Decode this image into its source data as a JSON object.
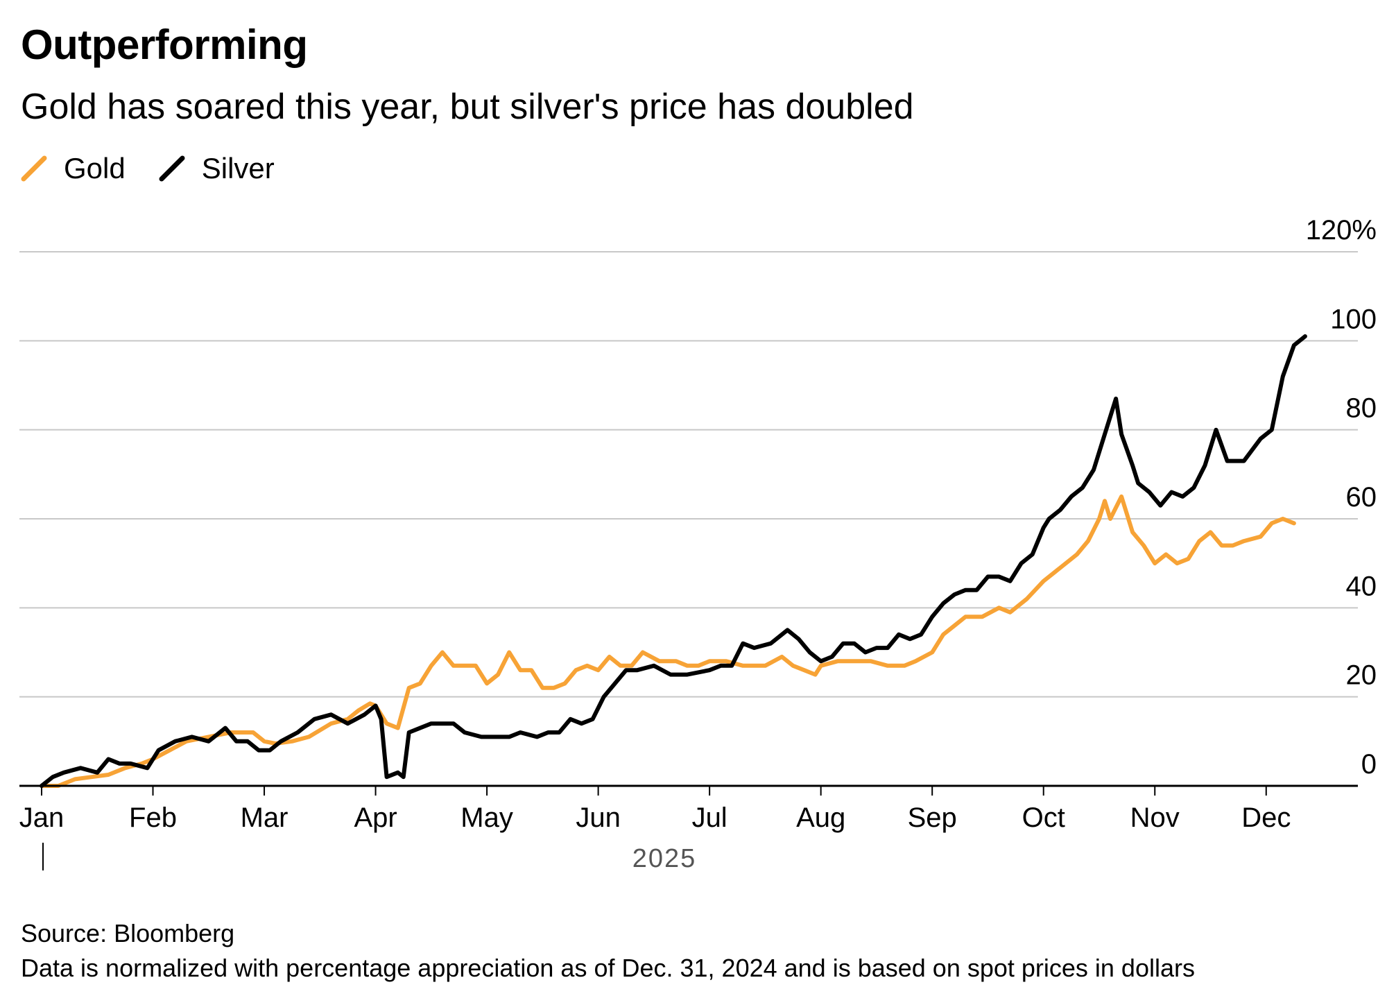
{
  "header": {
    "title": "Outperforming",
    "subtitle": "Gold has soared this year, but silver's price has doubled"
  },
  "footer": {
    "source": "Source: Bloomberg",
    "note": "Data is normalized with percentage appreciation as of Dec. 31, 2024 and is based on spot prices in dollars"
  },
  "chart_data": {
    "type": "line",
    "title": "Outperforming",
    "subtitle": "Gold has soared this year, but silver's price has doubled",
    "xlabel": "2025",
    "ylabel": "",
    "ylim": [
      0,
      120
    ],
    "xlim": [
      0,
      11.45
    ],
    "y_ticks": [
      {
        "value": 0,
        "label": "0"
      },
      {
        "value": 20,
        "label": "20"
      },
      {
        "value": 40,
        "label": "40"
      },
      {
        "value": 60,
        "label": "60"
      },
      {
        "value": 80,
        "label": "80"
      },
      {
        "value": 100,
        "label": "100"
      },
      {
        "value": 120,
        "label": "120%"
      }
    ],
    "x_ticks": [
      {
        "value": 0,
        "label": "Jan"
      },
      {
        "value": 1,
        "label": "Feb"
      },
      {
        "value": 2,
        "label": "Mar"
      },
      {
        "value": 3,
        "label": "Apr"
      },
      {
        "value": 4,
        "label": "May"
      },
      {
        "value": 5,
        "label": "Jun"
      },
      {
        "value": 6,
        "label": "Jul"
      },
      {
        "value": 7,
        "label": "Aug"
      },
      {
        "value": 8,
        "label": "Sep"
      },
      {
        "value": 9,
        "label": "Oct"
      },
      {
        "value": 10,
        "label": "Nov"
      },
      {
        "value": 11,
        "label": "Dec"
      }
    ],
    "x_unit": "months since Jan 1, 2025",
    "grid": true,
    "legend": "top-left",
    "series": [
      {
        "name": "Gold",
        "color": "#F7A336",
        "points": [
          [
            0,
            0
          ],
          [
            0.15,
            0
          ],
          [
            0.3,
            1.5
          ],
          [
            0.45,
            2
          ],
          [
            0.6,
            2.5
          ],
          [
            0.75,
            4
          ],
          [
            0.9,
            5
          ],
          [
            1.0,
            6
          ],
          [
            1.15,
            8
          ],
          [
            1.3,
            10
          ],
          [
            1.5,
            11
          ],
          [
            1.7,
            12
          ],
          [
            1.9,
            12
          ],
          [
            2.0,
            10
          ],
          [
            2.1,
            9.5
          ],
          [
            2.25,
            10
          ],
          [
            2.4,
            11
          ],
          [
            2.6,
            14
          ],
          [
            2.75,
            15
          ],
          [
            2.85,
            17
          ],
          [
            2.95,
            18.5
          ],
          [
            3.0,
            18
          ],
          [
            3.1,
            14
          ],
          [
            3.2,
            13
          ],
          [
            3.3,
            22
          ],
          [
            3.4,
            23
          ],
          [
            3.5,
            27
          ],
          [
            3.6,
            30
          ],
          [
            3.7,
            27
          ],
          [
            3.8,
            27
          ],
          [
            3.9,
            27
          ],
          [
            4.0,
            23
          ],
          [
            4.1,
            25
          ],
          [
            4.2,
            30
          ],
          [
            4.3,
            26
          ],
          [
            4.4,
            26
          ],
          [
            4.5,
            22
          ],
          [
            4.6,
            22
          ],
          [
            4.7,
            23
          ],
          [
            4.8,
            26
          ],
          [
            4.9,
            27
          ],
          [
            5.0,
            26
          ],
          [
            5.1,
            29
          ],
          [
            5.2,
            27
          ],
          [
            5.3,
            27
          ],
          [
            5.4,
            30
          ],
          [
            5.55,
            28
          ],
          [
            5.7,
            28
          ],
          [
            5.8,
            27
          ],
          [
            5.9,
            27
          ],
          [
            6.0,
            28
          ],
          [
            6.15,
            28
          ],
          [
            6.3,
            27
          ],
          [
            6.5,
            27
          ],
          [
            6.65,
            29
          ],
          [
            6.75,
            27
          ],
          [
            6.85,
            26
          ],
          [
            6.95,
            25
          ],
          [
            7.0,
            27
          ],
          [
            7.15,
            28
          ],
          [
            7.3,
            28
          ],
          [
            7.45,
            28
          ],
          [
            7.6,
            27
          ],
          [
            7.75,
            27
          ],
          [
            7.85,
            28
          ],
          [
            8.0,
            30
          ],
          [
            8.1,
            34
          ],
          [
            8.2,
            36
          ],
          [
            8.3,
            38
          ],
          [
            8.45,
            38
          ],
          [
            8.6,
            40
          ],
          [
            8.7,
            39
          ],
          [
            8.85,
            42
          ],
          [
            9.0,
            46
          ],
          [
            9.1,
            48
          ],
          [
            9.2,
            50
          ],
          [
            9.3,
            52
          ],
          [
            9.4,
            55
          ],
          [
            9.5,
            60
          ],
          [
            9.55,
            64
          ],
          [
            9.6,
            60
          ],
          [
            9.7,
            65
          ],
          [
            9.8,
            57
          ],
          [
            9.9,
            54
          ],
          [
            10.0,
            50
          ],
          [
            10.1,
            52
          ],
          [
            10.2,
            50
          ],
          [
            10.3,
            51
          ],
          [
            10.4,
            55
          ],
          [
            10.5,
            57
          ],
          [
            10.6,
            54
          ],
          [
            10.7,
            54
          ],
          [
            10.8,
            55
          ],
          [
            10.95,
            56
          ],
          [
            11.05,
            59
          ],
          [
            11.15,
            60
          ],
          [
            11.25,
            59
          ]
        ]
      },
      {
        "name": "Silver",
        "color": "#000000",
        "points": [
          [
            0,
            0
          ],
          [
            0.1,
            2
          ],
          [
            0.2,
            3
          ],
          [
            0.35,
            4
          ],
          [
            0.5,
            3
          ],
          [
            0.6,
            6
          ],
          [
            0.7,
            5
          ],
          [
            0.8,
            5
          ],
          [
            0.95,
            4
          ],
          [
            1.05,
            8
          ],
          [
            1.2,
            10
          ],
          [
            1.35,
            11
          ],
          [
            1.5,
            10
          ],
          [
            1.65,
            13
          ],
          [
            1.75,
            10
          ],
          [
            1.85,
            10
          ],
          [
            1.95,
            8
          ],
          [
            2.05,
            8
          ],
          [
            2.15,
            10
          ],
          [
            2.3,
            12
          ],
          [
            2.45,
            15
          ],
          [
            2.6,
            16
          ],
          [
            2.75,
            14
          ],
          [
            2.9,
            16
          ],
          [
            3.0,
            18
          ],
          [
            3.05,
            15
          ],
          [
            3.1,
            2
          ],
          [
            3.2,
            3
          ],
          [
            3.25,
            2
          ],
          [
            3.3,
            12
          ],
          [
            3.4,
            13
          ],
          [
            3.5,
            14
          ],
          [
            3.6,
            14
          ],
          [
            3.7,
            14
          ],
          [
            3.8,
            12
          ],
          [
            3.95,
            11
          ],
          [
            4.1,
            11
          ],
          [
            4.2,
            11
          ],
          [
            4.3,
            12
          ],
          [
            4.45,
            11
          ],
          [
            4.55,
            12
          ],
          [
            4.65,
            12
          ],
          [
            4.75,
            15
          ],
          [
            4.85,
            14
          ],
          [
            4.95,
            15
          ],
          [
            5.05,
            20
          ],
          [
            5.15,
            23
          ],
          [
            5.25,
            26
          ],
          [
            5.35,
            26
          ],
          [
            5.5,
            27
          ],
          [
            5.65,
            25
          ],
          [
            5.8,
            25
          ],
          [
            6.0,
            26
          ],
          [
            6.1,
            27
          ],
          [
            6.2,
            27
          ],
          [
            6.3,
            32
          ],
          [
            6.4,
            31
          ],
          [
            6.55,
            32
          ],
          [
            6.7,
            35
          ],
          [
            6.8,
            33
          ],
          [
            6.9,
            30
          ],
          [
            7.0,
            28
          ],
          [
            7.1,
            29
          ],
          [
            7.2,
            32
          ],
          [
            7.3,
            32
          ],
          [
            7.4,
            30
          ],
          [
            7.5,
            31
          ],
          [
            7.6,
            31
          ],
          [
            7.7,
            34
          ],
          [
            7.8,
            33
          ],
          [
            7.9,
            34
          ],
          [
            8.0,
            38
          ],
          [
            8.1,
            41
          ],
          [
            8.2,
            43
          ],
          [
            8.3,
            44
          ],
          [
            8.4,
            44
          ],
          [
            8.5,
            47
          ],
          [
            8.6,
            47
          ],
          [
            8.7,
            46
          ],
          [
            8.8,
            50
          ],
          [
            8.9,
            52
          ],
          [
            9.0,
            58
          ],
          [
            9.05,
            60
          ],
          [
            9.15,
            62
          ],
          [
            9.25,
            65
          ],
          [
            9.35,
            67
          ],
          [
            9.45,
            71
          ],
          [
            9.55,
            79
          ],
          [
            9.65,
            87
          ],
          [
            9.7,
            79
          ],
          [
            9.8,
            72
          ],
          [
            9.85,
            68
          ],
          [
            9.95,
            66
          ],
          [
            10.05,
            63
          ],
          [
            10.15,
            66
          ],
          [
            10.25,
            65
          ],
          [
            10.35,
            67
          ],
          [
            10.45,
            72
          ],
          [
            10.55,
            80
          ],
          [
            10.65,
            73
          ],
          [
            10.8,
            73
          ],
          [
            10.95,
            78
          ],
          [
            11.05,
            80
          ],
          [
            11.15,
            92
          ],
          [
            11.25,
            99
          ],
          [
            11.35,
            101
          ]
        ]
      }
    ]
  }
}
